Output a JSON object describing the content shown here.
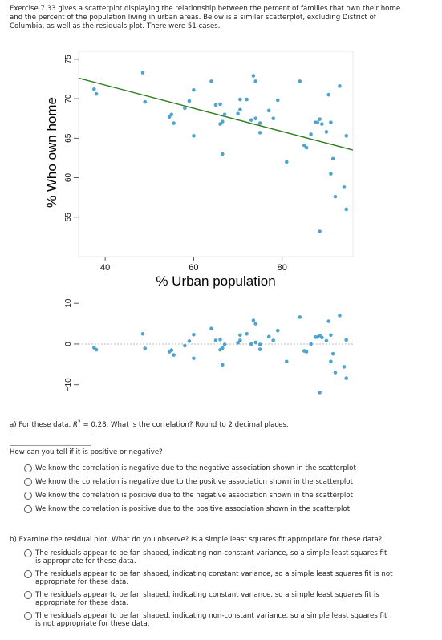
{
  "intro": "Exercise 7.33 gives a scatterplot displaying the relationship between the percent of families that own their home and the percent of the population living in urban areas. Below is a similar scatterplot, excluding District of Columbia, as well as the residuals plot. There were 51 cases.",
  "colors": {
    "points": "#4fa3d1",
    "line": "#2e7d1f",
    "grid": "#cfcfcf",
    "frame": "#e8e8e8"
  },
  "chart_data": [
    {
      "type": "scatter",
      "xlabel": "% Urban population",
      "ylabel": "% Who own home",
      "xlim": [
        34,
        96
      ],
      "ylim": [
        50,
        76
      ],
      "xticks": [
        40,
        60,
        80
      ],
      "yticks": [
        55,
        60,
        65,
        70,
        75
      ],
      "regression_line": {
        "x": [
          34,
          96
        ],
        "y": [
          72.6,
          63.5
        ]
      },
      "points": [
        [
          37.5,
          71.2
        ],
        [
          38,
          70.6
        ],
        [
          48.5,
          73.3
        ],
        [
          49,
          69.6
        ],
        [
          54.5,
          67.7
        ],
        [
          55,
          68
        ],
        [
          55.5,
          66.9
        ],
        [
          58,
          68.8
        ],
        [
          59,
          69.7
        ],
        [
          60,
          71.1
        ],
        [
          60,
          65.3
        ],
        [
          64,
          72.2
        ],
        [
          65,
          69.2
        ],
        [
          66,
          69.3
        ],
        [
          66.5,
          67.1
        ],
        [
          66,
          66.8
        ],
        [
          67,
          68
        ],
        [
          66.5,
          63
        ],
        [
          70,
          68.1
        ],
        [
          70.5,
          69.9
        ],
        [
          70.5,
          68.6
        ],
        [
          72,
          69.9
        ],
        [
          73,
          67.3
        ],
        [
          73.5,
          72.9
        ],
        [
          74,
          67.5
        ],
        [
          74,
          72.2
        ],
        [
          75,
          65.7
        ],
        [
          75,
          66.9
        ],
        [
          77,
          68.5
        ],
        [
          78,
          67.5
        ],
        [
          79,
          69.8
        ],
        [
          81,
          62
        ],
        [
          84,
          72.2
        ],
        [
          85,
          64.1
        ],
        [
          85.5,
          63.8
        ],
        [
          86.5,
          65.5
        ],
        [
          87.5,
          67
        ],
        [
          88,
          67
        ],
        [
          88.5,
          67.4
        ],
        [
          89,
          66.8
        ],
        [
          88.5,
          53.2
        ],
        [
          90,
          65.8
        ],
        [
          90.5,
          70.5
        ],
        [
          91,
          67
        ],
        [
          91.5,
          62.4
        ],
        [
          91,
          60.5
        ],
        [
          92,
          57.6
        ],
        [
          93,
          71.6
        ],
        [
          94,
          58.8
        ],
        [
          94.5,
          65.3
        ],
        [
          94.5,
          56
        ]
      ]
    },
    {
      "type": "scatter",
      "ylabel": "",
      "xlim": [
        34,
        96
      ],
      "ylim": [
        -13,
        12
      ],
      "yticks": [
        -10,
        0,
        10
      ],
      "reference_line": 0,
      "points": [
        [
          37.5,
          -0.9
        ],
        [
          38,
          -1.4
        ],
        [
          48.5,
          2.5
        ],
        [
          49,
          -1.1
        ],
        [
          54.5,
          -1.9
        ],
        [
          55,
          -1.5
        ],
        [
          55.5,
          -2.7
        ],
        [
          58,
          -0.4
        ],
        [
          59,
          0.7
        ],
        [
          60,
          2.3
        ],
        [
          60,
          -3.5
        ],
        [
          64,
          3.8
        ],
        [
          65,
          0.9
        ],
        [
          66,
          1.1
        ],
        [
          66.5,
          -1.0
        ],
        [
          66,
          -1.4
        ],
        [
          67,
          -0.1
        ],
        [
          66.5,
          -5.1
        ],
        [
          70,
          0.3
        ],
        [
          70.5,
          2.2
        ],
        [
          70.5,
          0.9
        ],
        [
          72,
          2.5
        ],
        [
          73,
          0
        ],
        [
          73.5,
          5.8
        ],
        [
          74,
          0.4
        ],
        [
          74,
          5.0
        ],
        [
          75,
          -1.3
        ],
        [
          75,
          -0.1
        ],
        [
          77,
          1.8
        ],
        [
          78,
          0.9
        ],
        [
          79,
          3.3
        ],
        [
          81,
          -4.3
        ],
        [
          84,
          6.6
        ],
        [
          85,
          -1.7
        ],
        [
          85.5,
          -1.9
        ],
        [
          86.5,
          0
        ],
        [
          87.5,
          1.7
        ],
        [
          88,
          1.7
        ],
        [
          88.5,
          2.1
        ],
        [
          89,
          1.6
        ],
        [
          88.5,
          -11.9
        ],
        [
          90,
          0.8
        ],
        [
          90.5,
          5.6
        ],
        [
          91,
          2.2
        ],
        [
          91.5,
          -2.4
        ],
        [
          91,
          -4.3
        ],
        [
          92,
          -7.0
        ],
        [
          93,
          7.0
        ],
        [
          94,
          -5.6
        ],
        [
          94.5,
          1
        ],
        [
          94.5,
          -8.4
        ]
      ]
    }
  ],
  "qa": {
    "part_a_prefix": "a) For these data, ",
    "r2_symbol": "R",
    "r2_sup": "2",
    "part_a_suffix": " = 0.28. What is the correlation? Round to 2 decimal places.",
    "how_tell": "How can you tell if it is positive or negative?",
    "options_a": [
      "We know the correlation is negative due to the negative association shown in the scatterplot",
      "We know the correlation is negative due to the positive association shown in the scatterplot",
      "We know the correlation is positive due to the negative association shown in the scatterplot",
      "We know the correlation is positive due to the positive association shown in the scatterplot"
    ],
    "part_b": "b) Examine the residual plot. What do you observe? Is a simple least squares fit appropriate for these data?",
    "options_b": [
      "The residuals appear to be fan shaped, indicating non-constant variance, so a simple least squares fit is appropriate for these data.",
      "The residuals appear to be fan shaped, indicating constant variance, so a simple least squares fit is not appropriate for these data.",
      "The residuals appear to be fan shaped, indicating constant variance, so a simple least squares fit is appropriate for these data.",
      "The residuals appear to be fan shaped, indicating non-constant variance, so a simple least squares fit is not appropriate for these data."
    ]
  }
}
